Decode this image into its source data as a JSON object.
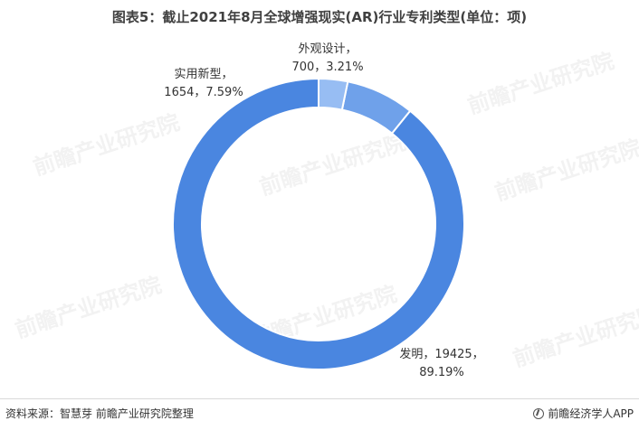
{
  "title": "图表5：截止2021年8月全球增强现实(AR)行业专利类型(单位：项)",
  "chart_data": {
    "type": "pie",
    "style": "donut",
    "title": "图表5：截止2021年8月全球增强现实(AR)行业专利类型(单位：项)",
    "slices": [
      {
        "name": "发明",
        "value": 19425,
        "percent": "89.19%",
        "color": "#4A86E0",
        "label_text": [
          "发明，19425，",
          "89.19%"
        ]
      },
      {
        "name": "实用新型",
        "value": 1654,
        "percent": "7.59%",
        "color": "#6FA1EA",
        "label_text": [
          "实用新型，",
          "1654，7.59%"
        ]
      },
      {
        "name": "外观设计",
        "value": 700,
        "percent": "3.21%",
        "color": "#97BDF3",
        "label_text": [
          "外观设计，",
          "700，3.21%"
        ]
      }
    ]
  },
  "watermark": "前瞻产业研究院",
  "footer": {
    "source": "资料来源：智慧芽 前瞻产业研究院整理",
    "brand": "前瞻经济学人APP"
  }
}
